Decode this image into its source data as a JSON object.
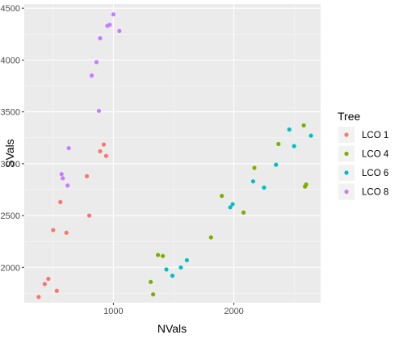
{
  "chart_data": {
    "type": "scatter",
    "xlabel": "NVals",
    "ylabel": "SVals",
    "xlim": [
      260,
      2720
    ],
    "ylim": [
      1660,
      4540
    ],
    "x_ticks": [
      1000,
      2000
    ],
    "y_ticks": [
      2000,
      2500,
      3000,
      3500,
      4000,
      4500
    ],
    "legend_title": "Tree",
    "grid": true,
    "legend_position": "right",
    "series": [
      {
        "name": "LCO 1",
        "color": "#F8766D",
        "points": [
          [
            380,
            1715
          ],
          [
            430,
            1840
          ],
          [
            460,
            1890
          ],
          [
            500,
            2360
          ],
          [
            530,
            1775
          ],
          [
            560,
            2630
          ],
          [
            610,
            2335
          ],
          [
            780,
            2880
          ],
          [
            800,
            2500
          ],
          [
            890,
            3120
          ],
          [
            920,
            3185
          ],
          [
            940,
            3075
          ]
        ]
      },
      {
        "name": "LCO 4",
        "color": "#7CAE00",
        "points": [
          [
            1310,
            1860
          ],
          [
            1330,
            1740
          ],
          [
            1370,
            2120
          ],
          [
            1410,
            2110
          ],
          [
            1810,
            2290
          ],
          [
            1900,
            2690
          ],
          [
            2080,
            2530
          ],
          [
            2170,
            2960
          ],
          [
            2370,
            3190
          ],
          [
            2580,
            3370
          ],
          [
            2590,
            2780
          ],
          [
            2600,
            2800
          ]
        ]
      },
      {
        "name": "LCO 6",
        "color": "#00BFC4",
        "points": [
          [
            1440,
            1980
          ],
          [
            1490,
            1920
          ],
          [
            1560,
            2000
          ],
          [
            1610,
            2070
          ],
          [
            1970,
            2580
          ],
          [
            1990,
            2610
          ],
          [
            2160,
            2830
          ],
          [
            2250,
            2770
          ],
          [
            2350,
            2990
          ],
          [
            2460,
            3330
          ],
          [
            2500,
            3170
          ],
          [
            2640,
            3270
          ]
        ]
      },
      {
        "name": "LCO 8",
        "color": "#C77CFF",
        "points": [
          [
            570,
            2900
          ],
          [
            580,
            2860
          ],
          [
            620,
            2790
          ],
          [
            630,
            3150
          ],
          [
            820,
            3850
          ],
          [
            860,
            3980
          ],
          [
            880,
            3510
          ],
          [
            890,
            4210
          ],
          [
            950,
            4330
          ],
          [
            970,
            4340
          ],
          [
            1000,
            4440
          ],
          [
            1050,
            4280
          ]
        ]
      }
    ]
  }
}
